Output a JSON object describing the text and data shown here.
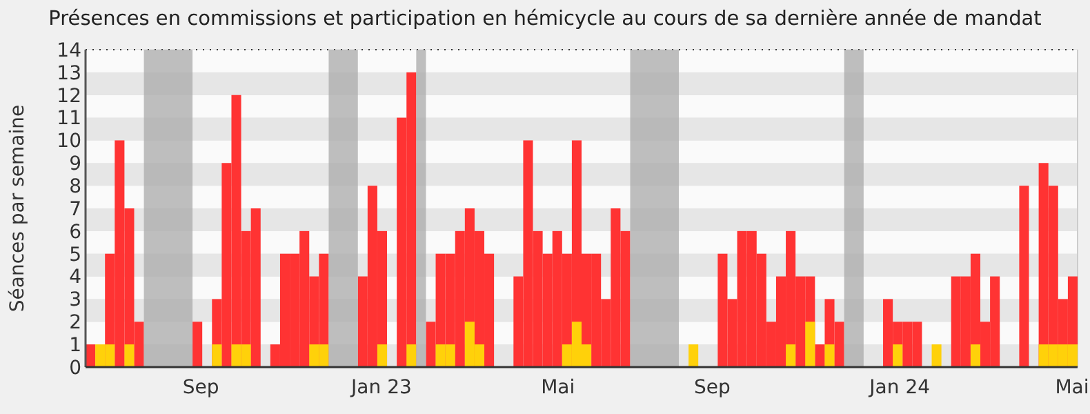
{
  "chart_data": {
    "type": "bar",
    "title": "Présences en commissions et participation en hémicycle au cours de sa dernière année de mandat",
    "ylabel": "Séances par semaine",
    "x": [
      "2022-06-13",
      "2022-06-20",
      "2022-06-27",
      "2022-07-04",
      "2022-07-11",
      "2022-07-18",
      "2022-07-25",
      "2022-08-01",
      "2022-08-08",
      "2022-08-15",
      "2022-08-22",
      "2022-08-29",
      "2022-09-05",
      "2022-09-12",
      "2022-09-19",
      "2022-09-26",
      "2022-10-03",
      "2022-10-10",
      "2022-10-17",
      "2022-10-24",
      "2022-10-31",
      "2022-11-07",
      "2022-11-14",
      "2022-11-21",
      "2022-11-28",
      "2022-12-05",
      "2022-12-12",
      "2022-12-19",
      "2022-12-26",
      "2023-01-02",
      "2023-01-09",
      "2023-01-16",
      "2023-01-23",
      "2023-01-30",
      "2023-02-06",
      "2023-02-13",
      "2023-02-20",
      "2023-02-27",
      "2023-03-06",
      "2023-03-13",
      "2023-03-20",
      "2023-03-27",
      "2023-04-03",
      "2023-04-10",
      "2023-04-17",
      "2023-04-24",
      "2023-05-01",
      "2023-05-08",
      "2023-05-15",
      "2023-05-22",
      "2023-05-29",
      "2023-06-05",
      "2023-06-12",
      "2023-06-19",
      "2023-06-26",
      "2023-07-03",
      "2023-07-10",
      "2023-07-17",
      "2023-07-24",
      "2023-07-31",
      "2023-08-07",
      "2023-08-14",
      "2023-08-21",
      "2023-08-28",
      "2023-09-04",
      "2023-09-11",
      "2023-09-18",
      "2023-09-25",
      "2023-10-02",
      "2023-10-09",
      "2023-10-16",
      "2023-10-23",
      "2023-10-30",
      "2023-11-06",
      "2023-11-13",
      "2023-11-20",
      "2023-11-27",
      "2023-12-04",
      "2023-12-11",
      "2023-12-18",
      "2023-12-25",
      "2024-01-01",
      "2024-01-08",
      "2024-01-15",
      "2024-01-22",
      "2024-01-29",
      "2024-02-05",
      "2024-02-12",
      "2024-02-19",
      "2024-02-26",
      "2024-03-04",
      "2024-03-11",
      "2024-03-18",
      "2024-03-25",
      "2024-04-01",
      "2024-04-08",
      "2024-04-15",
      "2024-04-22",
      "2024-04-29",
      "2024-05-06",
      "2024-05-13",
      "2024-05-20"
    ],
    "series": [
      {
        "color": "#ff3333",
        "values": [
          1,
          0,
          5,
          10,
          7,
          2,
          0,
          0,
          0,
          0,
          0,
          2,
          0,
          3,
          9,
          12,
          6,
          7,
          0,
          1,
          5,
          5,
          6,
          4,
          5,
          0,
          0,
          0,
          4,
          8,
          6,
          0,
          11,
          13,
          0,
          2,
          5,
          5,
          6,
          7,
          6,
          5,
          0,
          0,
          4,
          10,
          6,
          5,
          6,
          5,
          10,
          5,
          5,
          3,
          7,
          6,
          0,
          0,
          0,
          0,
          0,
          0,
          0,
          0,
          0,
          5,
          3,
          6,
          6,
          5,
          2,
          4,
          6,
          4,
          4,
          1,
          3,
          2,
          0,
          0,
          0,
          0,
          3,
          2,
          2,
          2,
          0,
          0,
          0,
          4,
          4,
          5,
          2,
          4,
          0,
          0,
          8,
          0,
          9,
          8,
          3,
          4
        ]
      },
      {
        "color": "#ffd10a",
        "values": [
          0,
          1,
          1,
          0,
          1,
          0,
          0,
          0,
          0,
          0,
          0,
          0,
          0,
          1,
          0,
          1,
          1,
          0,
          0,
          0,
          0,
          0,
          0,
          1,
          1,
          0,
          0,
          0,
          0,
          0,
          1,
          0,
          0,
          1,
          0,
          0,
          1,
          1,
          0,
          2,
          1,
          0,
          0,
          0,
          0,
          0,
          0,
          0,
          0,
          1,
          2,
          1,
          0,
          0,
          0,
          0,
          0,
          0,
          0,
          0,
          0,
          0,
          1,
          0,
          0,
          0,
          0,
          0,
          0,
          0,
          0,
          0,
          1,
          0,
          2,
          0,
          1,
          0,
          0,
          0,
          0,
          0,
          0,
          1,
          0,
          0,
          0,
          1,
          0,
          0,
          0,
          1,
          0,
          0,
          0,
          0,
          0,
          0,
          1,
          1,
          1,
          1
        ]
      }
    ],
    "xlim": [
      "2022-06-13",
      "2024-05-27"
    ],
    "xticks": [
      {
        "value": "2022-09-04",
        "label": "Sep"
      },
      {
        "value": "2023-01-12",
        "label": "Jan 23"
      },
      {
        "value": "2023-05-19",
        "label": "Mai"
      },
      {
        "value": "2023-09-07",
        "label": "Sep"
      },
      {
        "value": "2024-01-20",
        "label": "Jan 24"
      },
      {
        "value": "2024-05-23",
        "label": "Mai"
      }
    ],
    "ylim": [
      0,
      14
    ],
    "yticks": [
      0,
      1,
      2,
      3,
      4,
      5,
      6,
      7,
      8,
      9,
      10,
      11,
      12,
      13,
      14
    ],
    "grid": "y",
    "bands": [
      {
        "axis": "x",
        "from": "2022-07-25",
        "to": "2022-08-29",
        "color": "#aaaaaa"
      },
      {
        "axis": "x",
        "from": "2022-12-05",
        "to": "2022-12-26",
        "color": "#aaaaaa"
      },
      {
        "axis": "x",
        "from": "2023-02-06",
        "to": "2023-02-13",
        "color": "#aaaaaa"
      },
      {
        "axis": "x",
        "from": "2023-07-10",
        "to": "2023-08-14",
        "color": "#aaaaaa"
      },
      {
        "axis": "x",
        "from": "2023-12-11",
        "to": "2023-12-25",
        "color": "#aaaaaa"
      }
    ]
  }
}
